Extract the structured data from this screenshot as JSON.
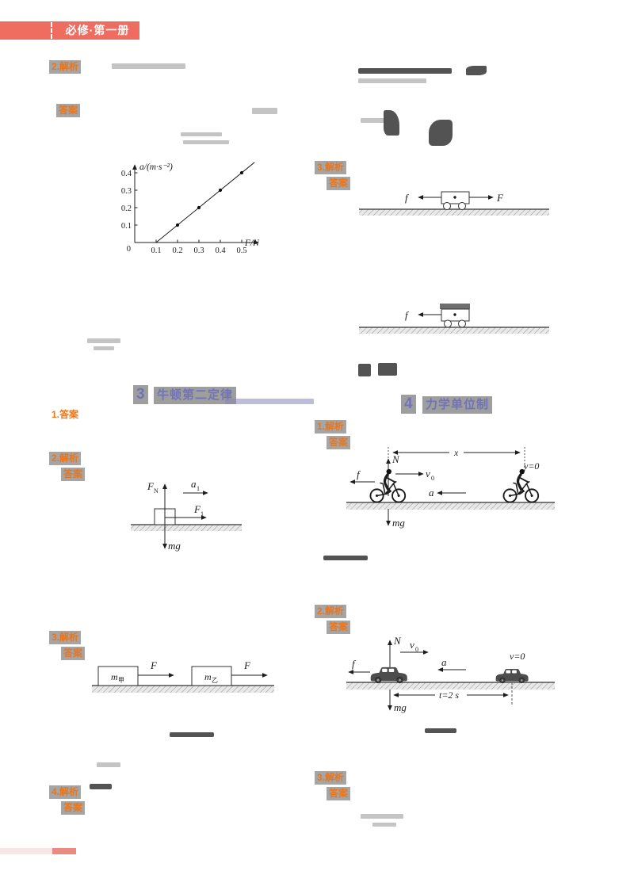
{
  "banner": {
    "title": "必修·第一册"
  },
  "colors": {
    "banner": "#ee6c60",
    "accent": "#e8761f",
    "heading": "#7173b6"
  },
  "sections": {
    "s3": {
      "number": "3",
      "title": "牛顿第二定律"
    },
    "s4": {
      "number": "4",
      "title": "力学单位制"
    }
  },
  "badges": {
    "l1": "2.解析",
    "l2": "答案",
    "l3": "1.答案",
    "l4": {
      "line1": "2.解析",
      "line2": "答案"
    },
    "l5": {
      "line1": "3.解析",
      "line2": "答案"
    },
    "l6": {
      "line1": "4.解析",
      "line2": "答案"
    },
    "r1": {
      "line1": "3.解析",
      "line2": "答案"
    },
    "r2": {
      "line1": "1.解析",
      "line2": "答案"
    },
    "r3": {
      "line1": "2.解析",
      "line2": "答案"
    },
    "r4": {
      "line1": "3.解析",
      "line2": "答案"
    }
  },
  "chart_data": {
    "type": "scatter",
    "title": "",
    "xlabel": "F/N",
    "ylabel": "a/(m·s⁻²)",
    "origin_label": "0",
    "x_ticks": [
      "0.1",
      "0.2",
      "0.3",
      "0.4",
      "0.5"
    ],
    "y_ticks": [
      "0.1",
      "0.2",
      "0.3",
      "0.4"
    ],
    "points": [
      [
        0.2,
        0.1
      ],
      [
        0.3,
        0.2
      ],
      [
        0.4,
        0.3
      ],
      [
        0.5,
        0.4
      ]
    ],
    "fit_line": {
      "x_start": 0.1,
      "y_start": 0,
      "x_end": 0.56,
      "y_end": 0.46
    },
    "xlim": [
      0,
      0.6
    ],
    "ylim": [
      0,
      0.5
    ],
    "grid": false,
    "legend": "none"
  },
  "diagrams": {
    "cart_forward": {
      "f": "f",
      "F": "F"
    },
    "cart_decel": {
      "f": "f"
    },
    "block_push": {
      "FN_main": "F",
      "FN_sub": "N",
      "a_main": "a",
      "a_sub": "1",
      "F_main": "F",
      "F_sub": "1",
      "mg": "mg"
    },
    "two_blocks": {
      "m1_main": "m",
      "m1_sub": "甲",
      "m2_main": "m",
      "m2_sub": "乙",
      "F1": "F",
      "F2": "F"
    },
    "bike_brake": {
      "N": "N",
      "v_main": "v",
      "v_sub": "0",
      "f": "f",
      "a": "a",
      "x": "x",
      "v_end": "v=0",
      "mg": "mg"
    },
    "car_brake": {
      "N": "N",
      "v_main": "v",
      "v_sub": "0",
      "f": "f",
      "a": "a",
      "v_end": "v=0",
      "t": "t=2 s",
      "mg": "mg"
    }
  }
}
